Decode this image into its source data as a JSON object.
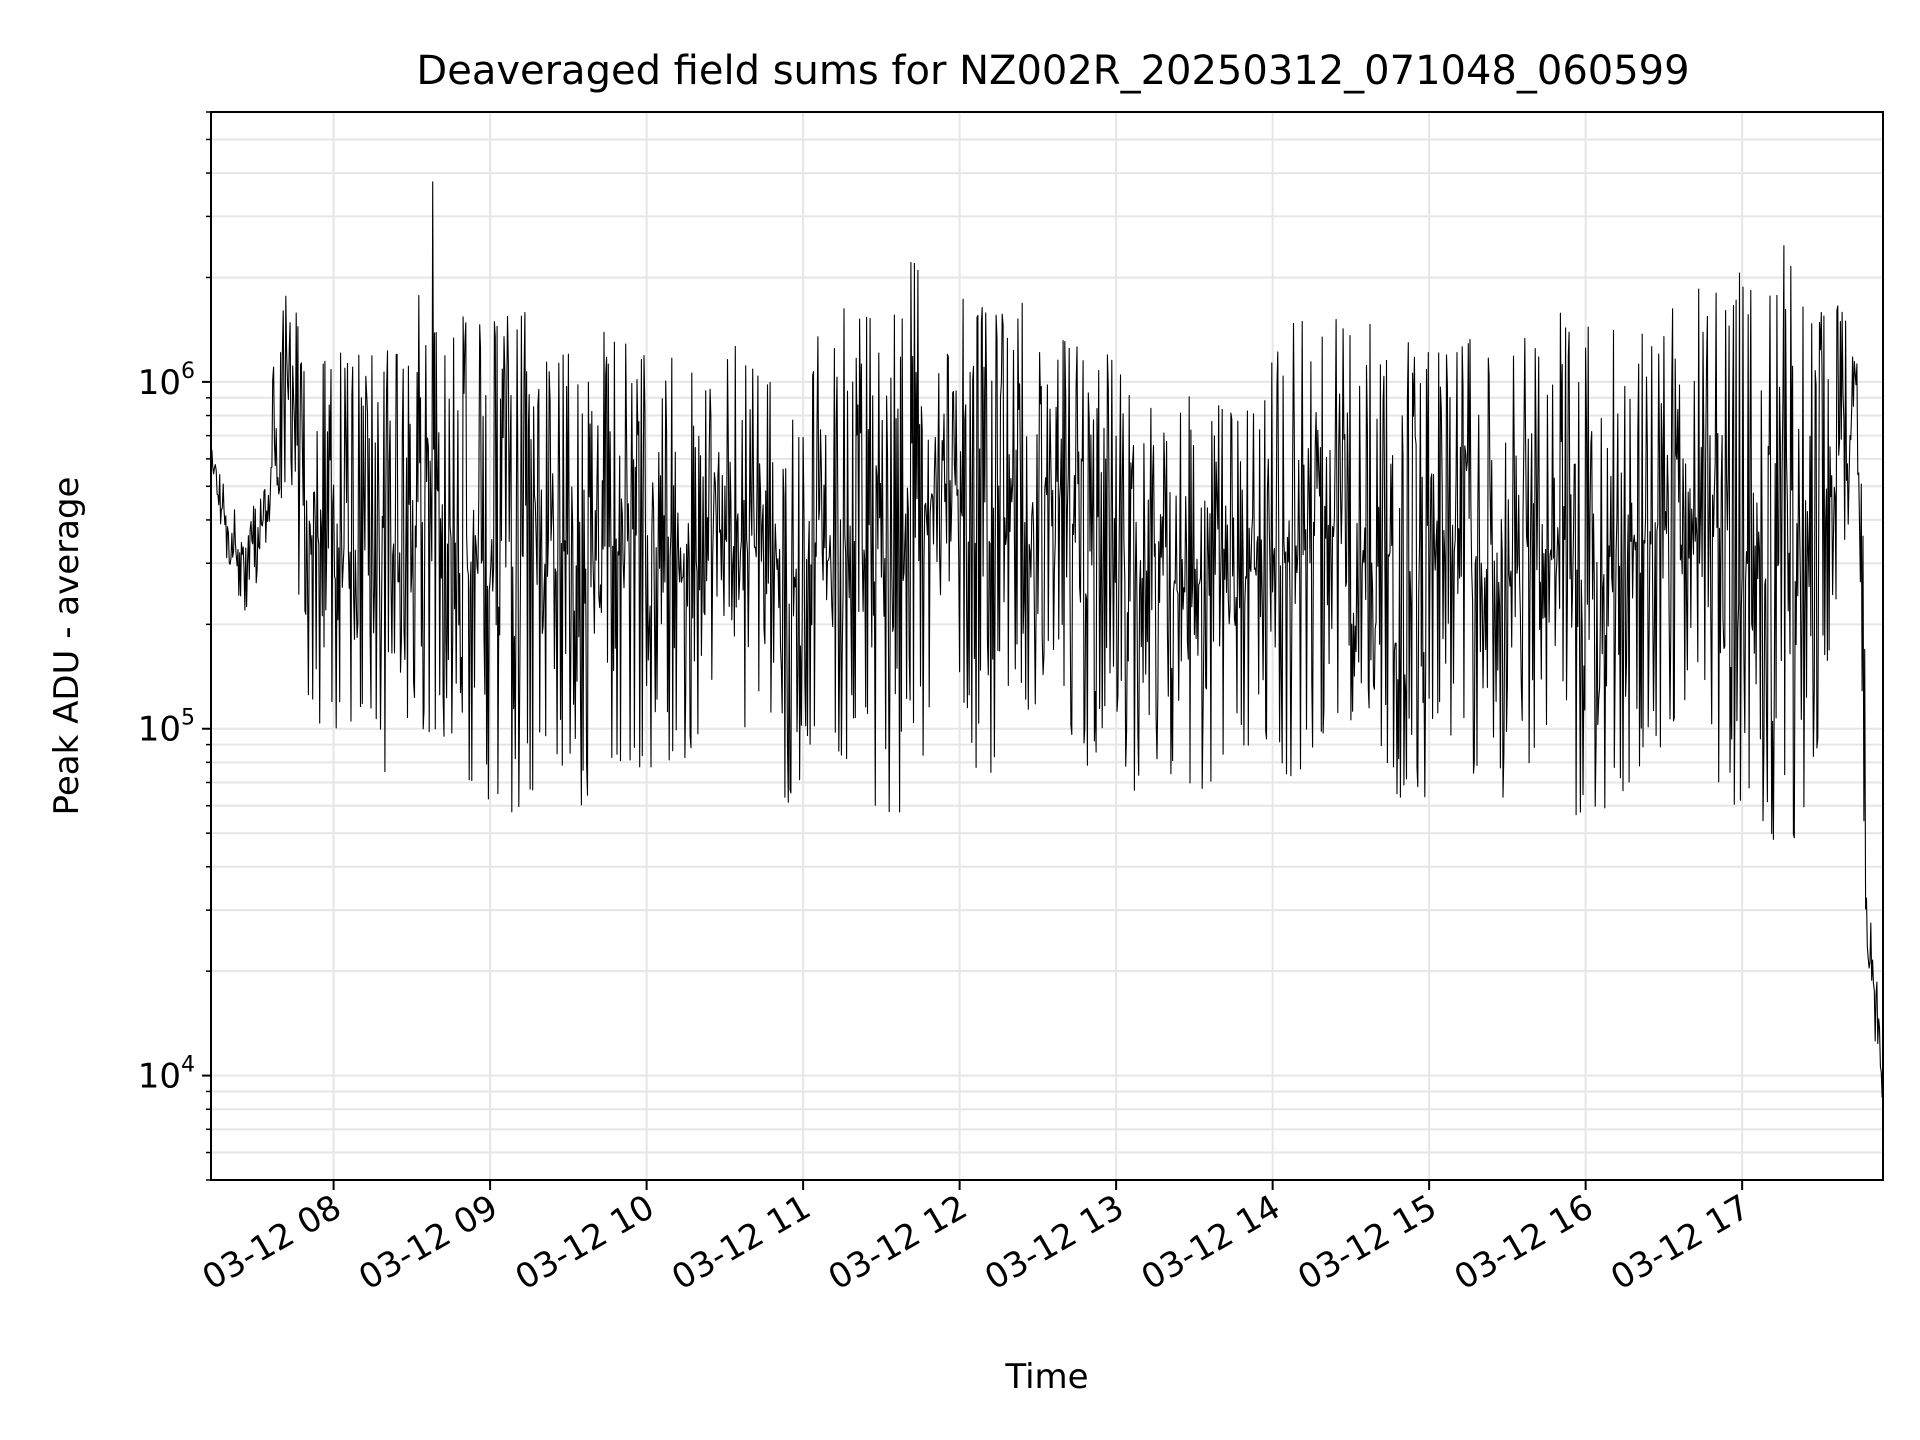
{
  "chart_data": {
    "type": "line",
    "title": "Deaveraged field sums for NZ002R_20250312_071048_060599",
    "xlabel": "Time",
    "ylabel": "Peak ADU - average",
    "yscale": "log",
    "xlim": [
      "2025-03-12T07:13:00",
      "2025-03-12T17:54:00"
    ],
    "ylim": [
      5000,
      6000000
    ],
    "grid": true,
    "line_color": "#000000",
    "x_ticks": [
      {
        "label": "03-12 08",
        "value": "2025-03-12T08:00:00"
      },
      {
        "label": "03-12 09",
        "value": "2025-03-12T09:00:00"
      },
      {
        "label": "03-12 10",
        "value": "2025-03-12T10:00:00"
      },
      {
        "label": "03-12 11",
        "value": "2025-03-12T11:00:00"
      },
      {
        "label": "03-12 12",
        "value": "2025-03-12T12:00:00"
      },
      {
        "label": "03-12 13",
        "value": "2025-03-12T13:00:00"
      },
      {
        "label": "03-12 14",
        "value": "2025-03-12T14:00:00"
      },
      {
        "label": "03-12 15",
        "value": "2025-03-12T15:00:00"
      },
      {
        "label": "03-12 16",
        "value": "2025-03-12T16:00:00"
      },
      {
        "label": "03-12 17",
        "value": "2025-03-12T17:00:00"
      }
    ],
    "y_ticks": [
      {
        "base": "10",
        "exp": "4",
        "value": 10000
      },
      {
        "base": "10",
        "exp": "5",
        "value": 100000
      },
      {
        "base": "10",
        "exp": "6",
        "value": 1000000
      }
    ],
    "series": [
      {
        "x": [
          "2025-03-12T07:13:00",
          "2025-03-12T07:20:00",
          "2025-03-12T07:27:00",
          "2025-03-12T07:34:00",
          "2025-03-12T07:38:00",
          "2025-03-12T07:43:00",
          "2025-03-12T07:50:00",
          "2025-03-12T08:00:00",
          "2025-03-12T08:10:00",
          "2025-03-12T08:20:00",
          "2025-03-12T08:30:00",
          "2025-03-12T08:38:00",
          "2025-03-12T08:45:00",
          "2025-03-12T08:55:00",
          "2025-03-12T09:05:00",
          "2025-03-12T09:15:00",
          "2025-03-12T09:25:00",
          "2025-03-12T09:35:00",
          "2025-03-12T09:45:00",
          "2025-03-12T09:55:00",
          "2025-03-12T10:05:00",
          "2025-03-12T10:15:00",
          "2025-03-12T10:25:00",
          "2025-03-12T10:35:00",
          "2025-03-12T10:45:00",
          "2025-03-12T10:55:00",
          "2025-03-12T11:05:00",
          "2025-03-12T11:15:00",
          "2025-03-12T11:25:00",
          "2025-03-12T11:35:00",
          "2025-03-12T11:45:00",
          "2025-03-12T11:55:00",
          "2025-03-12T12:05:00",
          "2025-03-12T12:15:00",
          "2025-03-12T12:25:00",
          "2025-03-12T12:35:00",
          "2025-03-12T12:45:00",
          "2025-03-12T12:55:00",
          "2025-03-12T13:05:00",
          "2025-03-12T13:15:00",
          "2025-03-12T13:25:00",
          "2025-03-12T13:35:00",
          "2025-03-12T13:45:00",
          "2025-03-12T13:55:00",
          "2025-03-12T14:05:00",
          "2025-03-12T14:15:00",
          "2025-03-12T14:25:00",
          "2025-03-12T14:35:00",
          "2025-03-12T14:45:00",
          "2025-03-12T14:55:00",
          "2025-03-12T15:05:00",
          "2025-03-12T15:15:00",
          "2025-03-12T15:25:00",
          "2025-03-12T15:35:00",
          "2025-03-12T15:45:00",
          "2025-03-12T15:55:00",
          "2025-03-12T16:05:00",
          "2025-03-12T16:15:00",
          "2025-03-12T16:25:00",
          "2025-03-12T16:35:00",
          "2025-03-12T16:45:00",
          "2025-03-12T16:55:00",
          "2025-03-12T17:05:00",
          "2025-03-12T17:15:00",
          "2025-03-12T17:25:00",
          "2025-03-12T17:35:00",
          "2025-03-12T17:41:00",
          "2025-03-12T17:44:00",
          "2025-03-12T17:46:00",
          "2025-03-12T17:48:00",
          "2025-03-12T17:50:00",
          "2025-03-12T17:52:00",
          "2025-03-12T17:54:00"
        ],
        "min": [
          550000,
          270000,
          200000,
          300000,
          350000,
          600000,
          100000,
          90000,
          80000,
          70000,
          100000,
          90000,
          90000,
          60000,
          55000,
          60000,
          80000,
          60000,
          80000,
          80000,
          70000,
          80000,
          100000,
          100000,
          70000,
          60000,
          70000,
          80000,
          60000,
          55000,
          60000,
          200000,
          60000,
          80000,
          100000,
          150000,
          80000,
          60000,
          60000,
          80000,
          70000,
          60000,
          70000,
          100000,
          70000,
          80000,
          100000,
          100000,
          70000,
          50000,
          100000,
          70000,
          55000,
          70000,
          100000,
          55000,
          55000,
          60000,
          80000,
          100000,
          80000,
          60000,
          50000,
          45000,
          50000,
          200000,
          400000,
          400000,
          80000,
          16000,
          12000,
          9000,
          8500
        ],
        "max": [
          650000,
          450000,
          400000,
          550000,
          1500000,
          2000000,
          1200000,
          1200000,
          1300000,
          1300000,
          1200000,
          4500000,
          1700000,
          1500000,
          1500000,
          1800000,
          1600000,
          1500000,
          1400000,
          1400000,
          1200000,
          1200000,
          1000000,
          1300000,
          1000000,
          1000000,
          1400000,
          1700000,
          1700000,
          1700000,
          2600000,
          1800000,
          1700000,
          1600000,
          1700000,
          1500000,
          1400000,
          1300000,
          1000000,
          900000,
          900000,
          1000000,
          800000,
          900000,
          1500000,
          1600000,
          1600000,
          1500000,
          1400000,
          1300000,
          1300000,
          1400000,
          1200000,
          1300000,
          1700000,
          1500000,
          1500000,
          1800000,
          1700000,
          1800000,
          1900000,
          2300000,
          1800000,
          2900000,
          1500000,
          1700000,
          1600000,
          1200000,
          800000,
          40000,
          25000,
          20000,
          18000
        ]
      }
    ]
  }
}
